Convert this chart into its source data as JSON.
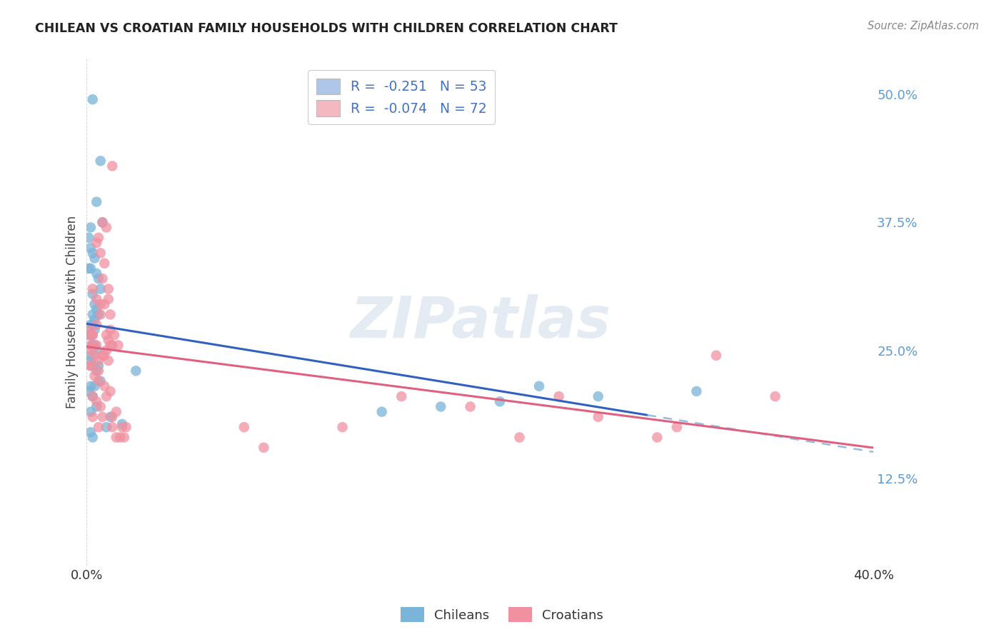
{
  "title": "CHILEAN VS CROATIAN FAMILY HOUSEHOLDS WITH CHILDREN CORRELATION CHART",
  "source": "Source: ZipAtlas.com",
  "ylabel": "Family Households with Children",
  "ytick_values": [
    0.125,
    0.25,
    0.375,
    0.5
  ],
  "ytick_labels": [
    "12.5%",
    "25.0%",
    "37.5%",
    "50.0%"
  ],
  "legend_entry_1_label": "R =  -0.251   N = 53",
  "legend_entry_2_label": "R =  -0.074   N = 72",
  "legend_patch_color_1": "#aec6e8",
  "legend_patch_color_2": "#f4b8c1",
  "chilean_dot_color": "#7ab4d8",
  "croatian_dot_color": "#f090a0",
  "trend_blue_color": "#3060c0",
  "trend_pink_color": "#e06080",
  "trend_dash_color": "#99bbdd",
  "background_color": "#ffffff",
  "watermark_text": "ZIPatlas",
  "source_label": "Source: ZipAtlas.com",
  "bottom_legend_chileans": "Chileans",
  "bottom_legend_croatians": "Croatians",
  "xlim": [
    0.0,
    0.4
  ],
  "ylim": [
    0.04,
    0.535
  ],
  "chilean_x": [
    0.003,
    0.007,
    0.005,
    0.002,
    0.001,
    0.002,
    0.003,
    0.004,
    0.002,
    0.001,
    0.005,
    0.006,
    0.007,
    0.003,
    0.004,
    0.005,
    0.008,
    0.006,
    0.004,
    0.003,
    0.002,
    0.003,
    0.004,
    0.002,
    0.001,
    0.003,
    0.004,
    0.005,
    0.003,
    0.002,
    0.002,
    0.003,
    0.005,
    0.006,
    0.007,
    0.002,
    0.004,
    0.001,
    0.003,
    0.002,
    0.005,
    0.012,
    0.018,
    0.01,
    0.002,
    0.003,
    0.23,
    0.31,
    0.26,
    0.21,
    0.18,
    0.15,
    0.025
  ],
  "chilean_y": [
    0.495,
    0.435,
    0.395,
    0.37,
    0.36,
    0.35,
    0.345,
    0.34,
    0.33,
    0.33,
    0.325,
    0.32,
    0.31,
    0.305,
    0.295,
    0.29,
    0.375,
    0.285,
    0.28,
    0.285,
    0.275,
    0.275,
    0.27,
    0.265,
    0.265,
    0.255,
    0.255,
    0.25,
    0.255,
    0.245,
    0.24,
    0.235,
    0.23,
    0.235,
    0.22,
    0.215,
    0.215,
    0.21,
    0.205,
    0.19,
    0.195,
    0.185,
    0.178,
    0.175,
    0.17,
    0.165,
    0.215,
    0.21,
    0.205,
    0.2,
    0.195,
    0.19,
    0.23
  ],
  "croatian_x": [
    0.001,
    0.003,
    0.008,
    0.012,
    0.002,
    0.005,
    0.01,
    0.006,
    0.003,
    0.005,
    0.007,
    0.009,
    0.011,
    0.013,
    0.002,
    0.004,
    0.006,
    0.008,
    0.002,
    0.003,
    0.005,
    0.007,
    0.009,
    0.011,
    0.002,
    0.005,
    0.007,
    0.01,
    0.012,
    0.003,
    0.006,
    0.008,
    0.011,
    0.002,
    0.004,
    0.006,
    0.009,
    0.012,
    0.003,
    0.005,
    0.007,
    0.01,
    0.003,
    0.006,
    0.008,
    0.013,
    0.015,
    0.017,
    0.013,
    0.012,
    0.011,
    0.01,
    0.009,
    0.014,
    0.016,
    0.015,
    0.013,
    0.02,
    0.018,
    0.019,
    0.16,
    0.13,
    0.195,
    0.08,
    0.24,
    0.09,
    0.22,
    0.3,
    0.26,
    0.32,
    0.35,
    0.29
  ],
  "croatian_y": [
    0.27,
    0.265,
    0.375,
    0.285,
    0.255,
    0.255,
    0.37,
    0.36,
    0.265,
    0.355,
    0.345,
    0.335,
    0.3,
    0.43,
    0.25,
    0.245,
    0.24,
    0.32,
    0.235,
    0.31,
    0.3,
    0.295,
    0.295,
    0.31,
    0.265,
    0.275,
    0.285,
    0.265,
    0.255,
    0.255,
    0.23,
    0.245,
    0.24,
    0.235,
    0.225,
    0.22,
    0.215,
    0.21,
    0.205,
    0.2,
    0.195,
    0.205,
    0.185,
    0.175,
    0.185,
    0.175,
    0.165,
    0.165,
    0.255,
    0.27,
    0.26,
    0.25,
    0.245,
    0.265,
    0.255,
    0.19,
    0.185,
    0.175,
    0.175,
    0.165,
    0.205,
    0.175,
    0.195,
    0.175,
    0.205,
    0.155,
    0.165,
    0.175,
    0.185,
    0.245,
    0.205,
    0.165
  ],
  "trend_blue_solid_end": 0.285,
  "trend_blue_dash_end": 0.4,
  "trend_pink_end": 0.4
}
